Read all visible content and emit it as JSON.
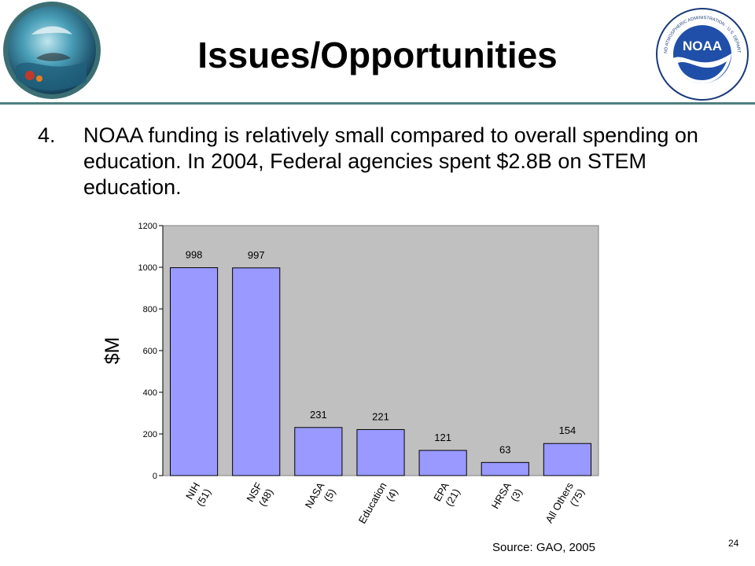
{
  "slide": {
    "title": "Issues/Opportunities",
    "bullet_number": "4.",
    "bullet_text": "NOAA funding is relatively small compared to overall spending on education. In 2004, Federal agencies spent $2.8B on STEM education.",
    "source": "Source: GAO, 2005",
    "page_number": "24"
  },
  "logos": {
    "left_icon": "ocean-collage-globe-icon",
    "right_icon": "noaa-seal-icon",
    "right_brand": "NOAA",
    "right_ring_text": "NATIONAL OCEANIC AND ATMOSPHERIC ADMINISTRATION · U.S. DEPARTMENT OF COMMERCE"
  },
  "colors": {
    "bar_fill": "#9999ff",
    "plot_bg": "#c0c0c0",
    "header_rule": "#4f7f80"
  },
  "chart_data": {
    "type": "bar",
    "categories": [
      {
        "name": "NIH",
        "count": "(51)"
      },
      {
        "name": "NSF",
        "count": "(48)"
      },
      {
        "name": "NASA",
        "count": "(5)"
      },
      {
        "name": "Education",
        "count": "(4)"
      },
      {
        "name": "EPA",
        "count": "(21)"
      },
      {
        "name": "HRSA",
        "count": "(3)"
      },
      {
        "name": "All Others",
        "count": "(75)"
      }
    ],
    "values": [
      998,
      997,
      231,
      221,
      121,
      63,
      154
    ],
    "ylabel": "$M",
    "ylim": [
      0,
      1200
    ],
    "yticks": [
      0,
      200,
      400,
      600,
      800,
      1000,
      1200
    ],
    "data_labels": true,
    "grid": false,
    "legend": "none"
  }
}
